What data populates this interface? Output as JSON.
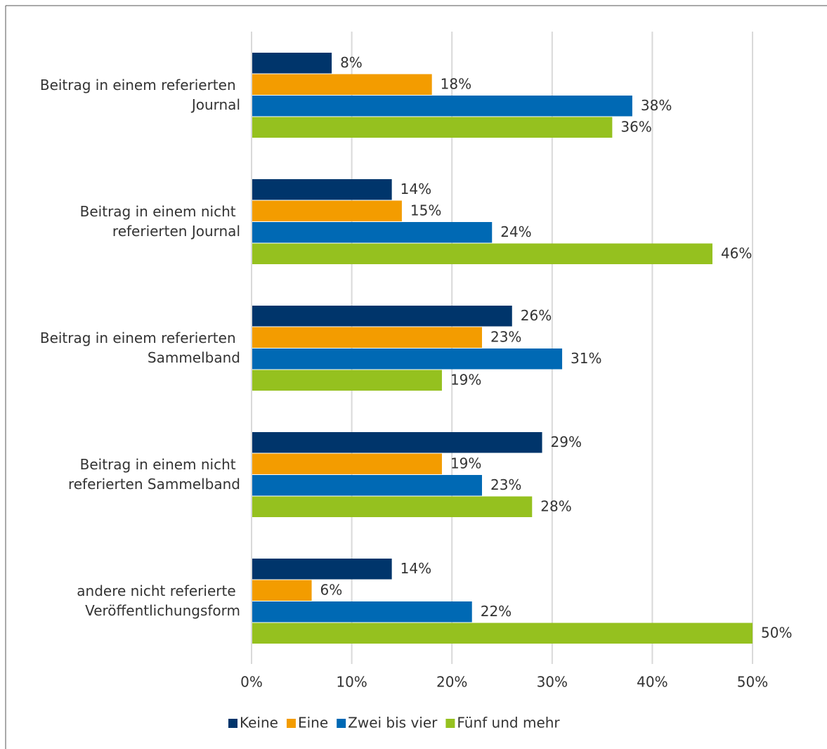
{
  "chart_data": {
    "type": "bar",
    "orientation": "horizontal",
    "categories": [
      "Beitrag in einem referierten Journal",
      "Beitrag in einem nicht referierten Journal",
      "Beitrag in einem referierten Sammelband",
      "Beitrag in einem nicht referierten Sammelband",
      "andere nicht referierte Veröffentlichungsform"
    ],
    "series": [
      {
        "name": "Keine",
        "color": "#00356b",
        "values": [
          8,
          14,
          26,
          29,
          14
        ],
        "value_labels": [
          "8%",
          "14%",
          "26%",
          "29%",
          "14%"
        ]
      },
      {
        "name": "Eine",
        "color": "#f39c00",
        "values": [
          18,
          15,
          23,
          19,
          6
        ],
        "value_labels": [
          "18%",
          "15%",
          "23%",
          "19%",
          "6%"
        ]
      },
      {
        "name": "Zwei bis vier",
        "color": "#0069b4",
        "values": [
          38,
          24,
          31,
          23,
          22
        ],
        "value_labels": [
          "38%",
          "24%",
          "31%",
          "23%",
          "22%"
        ]
      },
      {
        "name": "Fünf und mehr",
        "color": "#95c11f",
        "values": [
          36,
          46,
          19,
          28,
          50
        ],
        "value_labels": [
          "36%",
          "46%",
          "19%",
          "28%",
          "50%"
        ]
      }
    ],
    "xlim": [
      0,
      50
    ],
    "xticks": [
      {
        "value": 0,
        "label": "0%"
      },
      {
        "value": 10,
        "label": "10%"
      },
      {
        "value": 20,
        "label": "20%"
      },
      {
        "value": 30,
        "label": "30%"
      },
      {
        "value": 40,
        "label": "40%"
      },
      {
        "value": 50,
        "label": "50%"
      }
    ],
    "grid": true,
    "legend": "bottom"
  }
}
